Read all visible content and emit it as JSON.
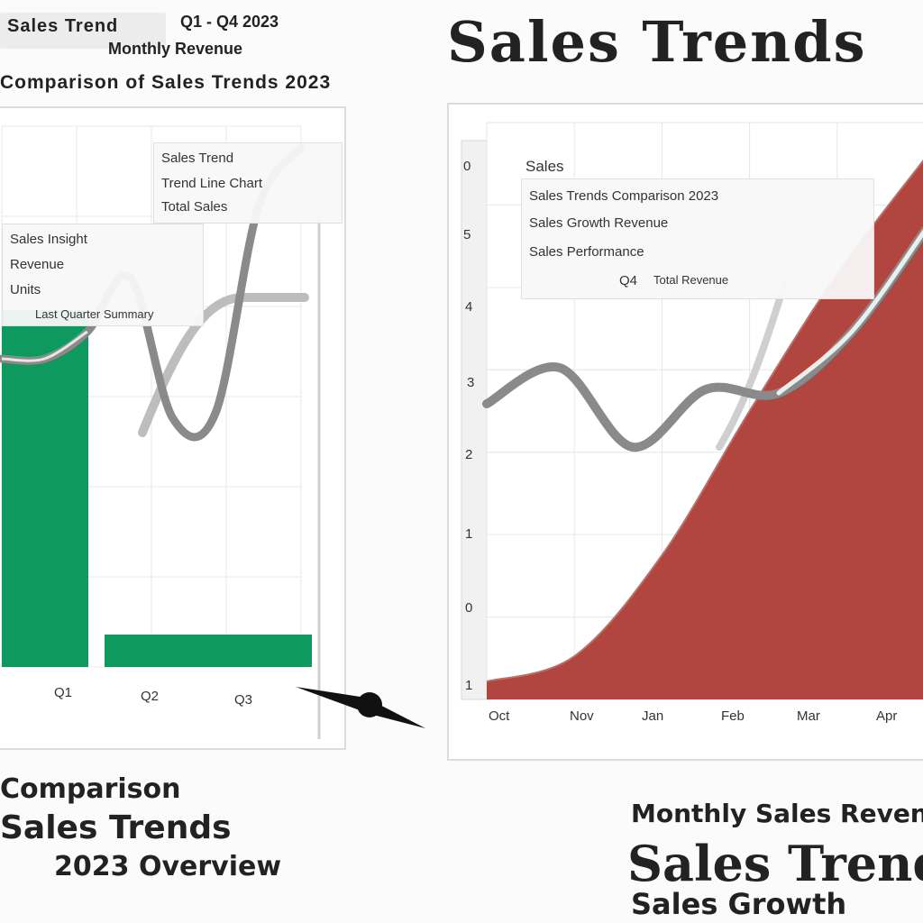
{
  "left": {
    "header_line1": "Sales Trend",
    "header_line1b": "Q1 - Q4 2023",
    "header_line2": "Monthly Revenue",
    "header_line3": "Comparison of Sales Trends 2023",
    "legend_box": {
      "title": "Sales Trend",
      "line2": "Trend Line Chart",
      "line3": "Total Sales"
    },
    "info_box": {
      "title": "Sales Insight",
      "line2": "Revenue",
      "line3": "Units",
      "line4": "Last Quarter Summary"
    },
    "x_labels": [
      "Q1",
      "Q2",
      "Q3"
    ],
    "caption_l1": "Comparison",
    "caption_l2": "Sales Trends",
    "caption_l3": "2023 Overview"
  },
  "right": {
    "title": "Sales Trends",
    "info_box": {
      "title": "Sales",
      "line1": "Sales Trends Comparison 2023",
      "line2": "Sales Growth Revenue",
      "line3": "Sales Performance",
      "line4": "Q4",
      "line5": "Total Revenue"
    },
    "y_labels": [
      "0",
      "5",
      "4",
      "3",
      "2",
      "1",
      "0",
      "1"
    ],
    "x_labels": [
      "Oct",
      "Nov",
      "Jan",
      "Feb",
      "Mar",
      "Apr"
    ],
    "caption_r1": "Monthly Sales Revenue",
    "caption_r2": "Sales Trends",
    "caption_r3": "Sales Growth"
  },
  "chart_data": [
    {
      "type": "bar",
      "categories": [
        "Q1",
        "Q2",
        "Q3"
      ],
      "series": [
        {
          "values": [
            66,
            6,
            6
          ]
        }
      ],
      "overlay_line": {
        "values": [
          57,
          57,
          62,
          72,
          46,
          47,
          85,
          96
        ]
      },
      "ylim": [
        0,
        100
      ],
      "grid": true,
      "colors": {
        "bar": "#0e9a5f",
        "line": "#8a8a8a",
        "trend": "#bdbdbd"
      }
    },
    {
      "type": "area",
      "x": [
        "Oct",
        "Nov",
        "Jan",
        "Feb",
        "Mar",
        "Apr"
      ],
      "series": [
        {
          "values": [
            5,
            12,
            40,
            80,
            118,
            150
          ]
        }
      ],
      "overlay_line": {
        "values": [
          82,
          92,
          70,
          86,
          85,
          102,
          130
        ]
      },
      "ylim": [
        0,
        160
      ],
      "grid": true,
      "colors": {
        "area": "#b1453f",
        "line": "#8a8a8a",
        "outline": "#e8f0ee"
      }
    }
  ]
}
